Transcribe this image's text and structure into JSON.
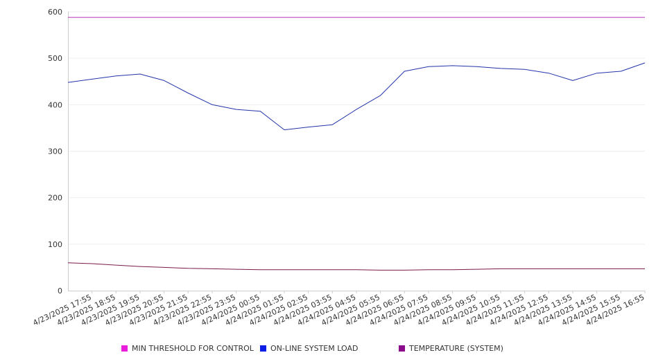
{
  "chart_data": {
    "type": "line",
    "title": "",
    "xlabel": "",
    "ylabel": "",
    "ylim": [
      0,
      600
    ],
    "yticks": [
      0,
      100,
      200,
      300,
      400,
      500,
      600
    ],
    "x_tick_labels": [
      "4/23/2025 17:55",
      "4/23/2025 18:55",
      "4/23/2025 19:55",
      "4/23/2025 20:55",
      "4/23/2025 21:55",
      "4/23/2025 22:55",
      "4/23/2025 23:55",
      "4/24/2025 00:55",
      "4/24/2025 01:55",
      "4/24/2025 02:55",
      "4/24/2025 03:55",
      "4/24/2025 04:55",
      "4/24/2025 05:55",
      "4/24/2025 06:55",
      "4/24/2025 07:55",
      "4/24/2025 08:55",
      "4/24/2025 09:55",
      "4/24/2025 10:55",
      "4/24/2025 11:55",
      "4/24/2025 12:55",
      "4/24/2025 13:55",
      "4/24/2025 14:55",
      "4/24/2025 15:55",
      "4/24/2025 16:55"
    ],
    "grid": true,
    "legend_position": "bottom",
    "series": [
      {
        "name": "MIN THRESHOLD FOR CONTROL",
        "color": "#e91edb",
        "line_color": "#b62db6",
        "values": [
          588,
          588,
          588,
          588,
          588,
          588,
          588,
          588,
          588,
          588,
          588,
          588,
          588,
          588,
          588,
          588,
          588,
          588,
          588,
          588,
          588,
          588,
          588,
          588,
          588
        ]
      },
      {
        "name": "ON-LINE SYSTEM LOAD",
        "color": "#0a1ee6",
        "line_color": "#2233aa",
        "values": [
          448,
          455,
          462,
          466,
          452,
          425,
          400,
          390,
          386,
          346,
          352,
          357,
          390,
          420,
          472,
          482,
          484,
          482,
          478,
          476,
          468,
          452,
          468,
          472,
          490
        ]
      },
      {
        "name": "TEMPERATURE (SYSTEM)",
        "color": "#8b0d8b",
        "line_color": "#7a1a4a",
        "values": [
          60,
          58,
          55,
          52,
          50,
          48,
          47,
          46,
          45,
          45,
          45,
          45,
          45,
          44,
          44,
          45,
          45,
          46,
          47,
          47,
          47,
          47,
          47,
          47,
          47
        ]
      }
    ]
  }
}
